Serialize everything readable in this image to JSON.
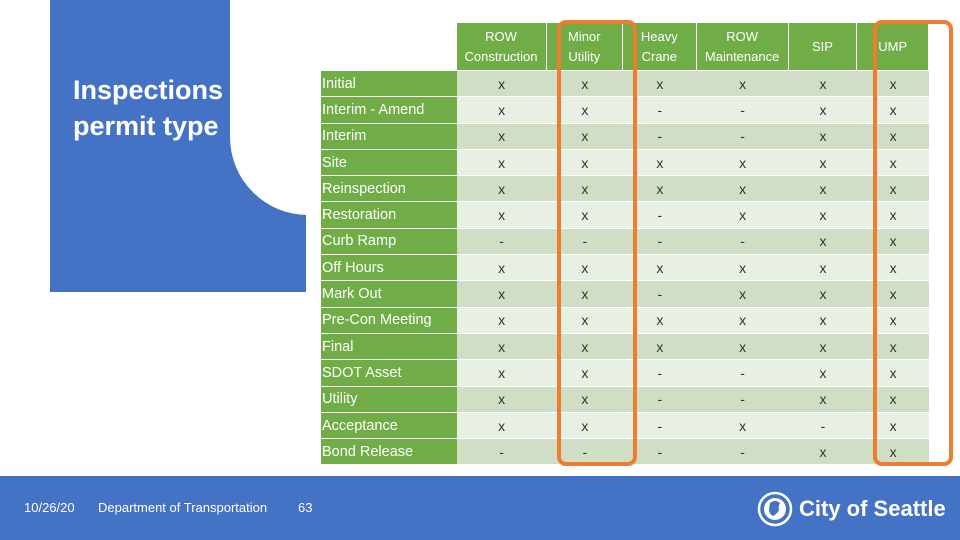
{
  "slide": {
    "title": "Inspections by permit type",
    "page_number": "63"
  },
  "table": {
    "columns": [
      "ROW\nConstruction",
      "Minor\nUtility",
      "Heavy\nCrane",
      "ROW\nMaintenance",
      "SIP",
      "UMP"
    ],
    "rows": [
      {
        "label": "Initial",
        "values": [
          "x",
          "x",
          "x",
          "x",
          "x",
          "x"
        ]
      },
      {
        "label": "Interim - Amend",
        "values": [
          "x",
          "x",
          "-",
          "-",
          "x",
          "x"
        ]
      },
      {
        "label": "Interim",
        "values": [
          "x",
          "x",
          "-",
          "-",
          "x",
          "x"
        ]
      },
      {
        "label": "Site",
        "values": [
          "x",
          "x",
          "x",
          "x",
          "x",
          "x"
        ]
      },
      {
        "label": "Reinspection",
        "values": [
          "x",
          "x",
          "x",
          "x",
          "x",
          "x"
        ]
      },
      {
        "label": "Restoration",
        "values": [
          "x",
          "x",
          "-",
          "x",
          "x",
          "x"
        ]
      },
      {
        "label": "Curb Ramp",
        "values": [
          "-",
          "-",
          "-",
          "-",
          "x",
          "x"
        ]
      },
      {
        "label": "Off Hours",
        "values": [
          "x",
          "x",
          "x",
          "x",
          "x",
          "x"
        ]
      },
      {
        "label": "Mark Out",
        "values": [
          "x",
          "x",
          "-",
          "x",
          "x",
          "x"
        ]
      },
      {
        "label": "Pre-Con Meeting",
        "values": [
          "x",
          "x",
          "x",
          "x",
          "x",
          "x"
        ]
      },
      {
        "label": "Final",
        "values": [
          "x",
          "x",
          "x",
          "x",
          "x",
          "x"
        ]
      },
      {
        "label": "SDOT Asset",
        "values": [
          "x",
          "x",
          "-",
          "-",
          "x",
          "x"
        ]
      },
      {
        "label": "Utility",
        "values": [
          "x",
          "x",
          "-",
          "-",
          "x",
          "x"
        ]
      },
      {
        "label": "Acceptance",
        "values": [
          "x",
          "x",
          "-",
          "x",
          "-",
          "x"
        ]
      },
      {
        "label": "Bond Release",
        "values": [
          "-",
          "-",
          "-",
          "-",
          "x",
          "x"
        ]
      }
    ]
  },
  "footer": {
    "date": "10/26/20",
    "department": "Department of Transportation",
    "logo_text": "City of Seattle"
  },
  "colors": {
    "blue": "#4472c4",
    "green": "#70ad47",
    "highlight": "#ed7d31"
  }
}
